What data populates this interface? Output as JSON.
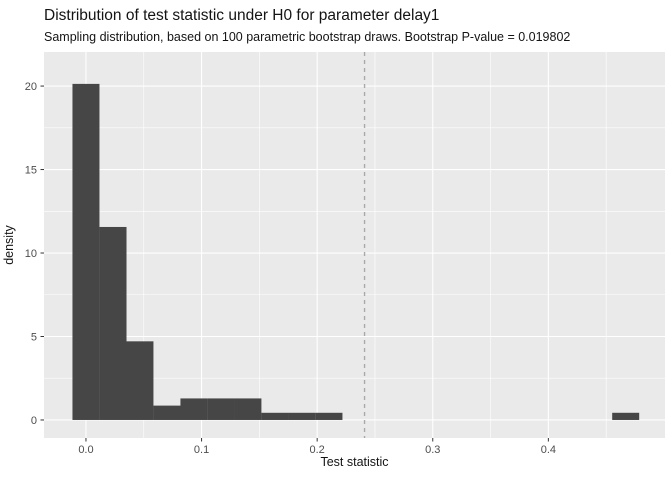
{
  "chart_data": {
    "type": "histogram",
    "title": "Distribution of test statistic under H0 for parameter delay1",
    "subtitle": "Sampling distribution, based on 100 parametric bootstrap draws. Bootstrap P-value = 0.019802",
    "xlabel": "Test statistic",
    "ylabel": "density",
    "bootstrap_draws": "100",
    "p_value": "0.019802",
    "bin_width": 0.02335,
    "bins": [
      {
        "center": 0.0,
        "density": 20.13
      },
      {
        "center": 0.0234,
        "density": 11.56
      },
      {
        "center": 0.0467,
        "density": 4.71
      },
      {
        "center": 0.0701,
        "density": 0.86
      },
      {
        "center": 0.0934,
        "density": 1.29
      },
      {
        "center": 0.1168,
        "density": 1.29
      },
      {
        "center": 0.1401,
        "density": 1.29
      },
      {
        "center": 0.1635,
        "density": 0.43
      },
      {
        "center": 0.1868,
        "density": 0.43
      },
      {
        "center": 0.2102,
        "density": 0.43
      },
      {
        "center": 0.4669,
        "density": 0.43
      }
    ],
    "vline": {
      "x": 0.241,
      "style": "dashed",
      "color": "#A9A9A9"
    },
    "x_ticks": [
      0.0,
      0.1,
      0.2,
      0.3,
      0.4
    ],
    "x_tick_labels": [
      "0.0",
      "0.1",
      "0.2",
      "0.3",
      "0.4"
    ],
    "x_minor": [
      0.05,
      0.15,
      0.25,
      0.35,
      0.45
    ],
    "y_ticks": [
      0,
      5,
      10,
      15,
      20
    ],
    "y_tick_labels": [
      "0",
      "5",
      "10",
      "15",
      "20"
    ],
    "y_minor": [
      2.5,
      7.5,
      12.5,
      17.5
    ],
    "xlim": [
      -0.0363,
      0.5009
    ],
    "ylim": [
      -1.08,
      22.04
    ],
    "grid": true,
    "legend": false,
    "colors": {
      "bar": "#464646",
      "panel": "#EAEAEA",
      "grid_major": "#FFFFFF",
      "grid_minor": "#FFFFFF",
      "tick_mark": "#333333",
      "axis_text": "#4D4D4D",
      "title_text": "#141414"
    }
  }
}
